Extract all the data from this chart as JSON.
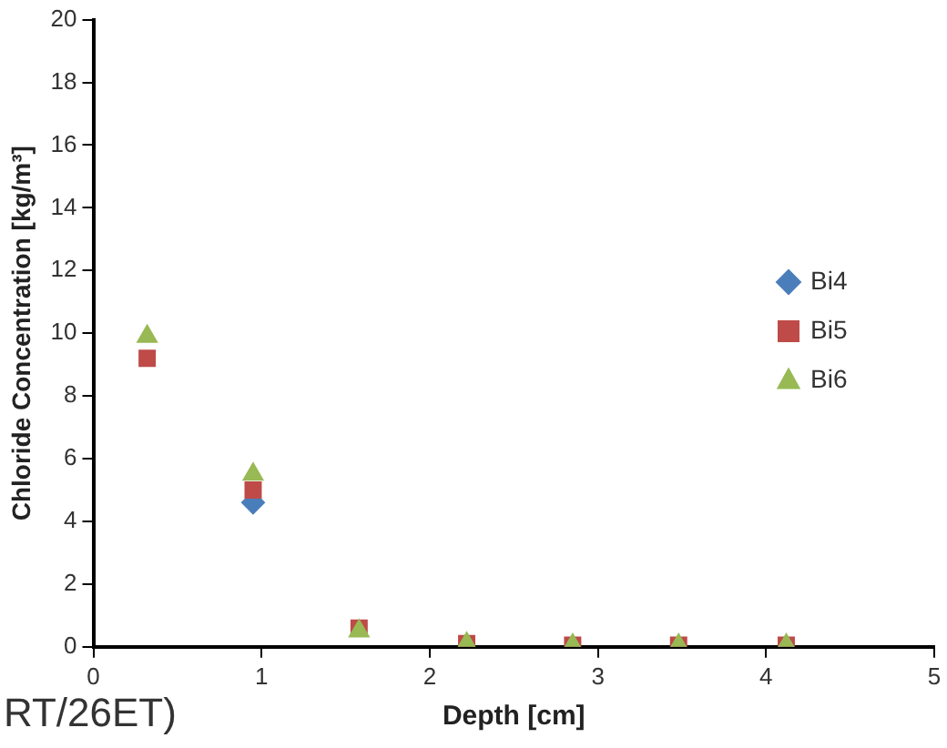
{
  "chart_data": {
    "type": "scatter",
    "xlabel": "Depth [cm]",
    "ylabel": "Chloride Concentration [kg/m³]",
    "x": [
      0.32,
      0.95,
      1.58,
      2.22,
      2.85,
      3.48,
      4.12
    ],
    "series": [
      {
        "name": "Bi4",
        "color": "#4a7ebb",
        "marker": "diamond",
        "values": [
          null,
          4.6,
          null,
          null,
          null,
          null,
          null
        ]
      },
      {
        "name": "Bi5",
        "color": "#be4b48",
        "marker": "square",
        "values": [
          9.2,
          5.0,
          0.6,
          0.1,
          0.05,
          0.05,
          0.05
        ]
      },
      {
        "name": "Bi6",
        "color": "#98b954",
        "marker": "triangle",
        "values": [
          9.9,
          5.5,
          0.5,
          0.1,
          0.05,
          0.05,
          0.05
        ]
      }
    ],
    "xlim": [
      0,
      5
    ],
    "xticks": [
      0,
      1,
      2,
      3,
      4,
      5
    ],
    "ylim": [
      0,
      20
    ],
    "yticks": [
      0,
      2,
      4,
      6,
      8,
      10,
      12,
      14,
      16,
      18,
      20
    ],
    "grid": false,
    "legend": "right",
    "annotations": [
      "RT/26ET)"
    ]
  }
}
